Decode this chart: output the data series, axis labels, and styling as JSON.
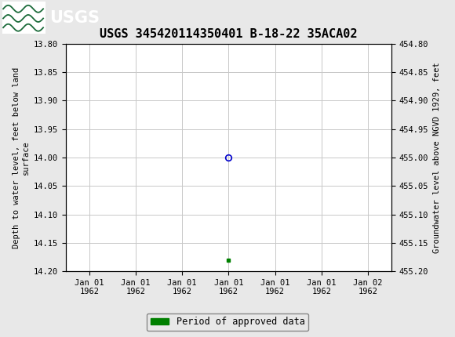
{
  "title": "USGS 345420114350401 B-18-22 35ACA02",
  "title_fontsize": 11,
  "ylabel_left": "Depth to water level, feet below land\nsurface",
  "ylabel_right": "Groundwater level above NGVD 1929, feet",
  "ylim_left": [
    13.8,
    14.2
  ],
  "ylim_right": [
    455.2,
    454.8
  ],
  "y_ticks_left": [
    13.8,
    13.85,
    13.9,
    13.95,
    14.0,
    14.05,
    14.1,
    14.15,
    14.2
  ],
  "y_ticks_right": [
    455.2,
    455.15,
    455.1,
    455.05,
    455.0,
    454.95,
    454.9,
    454.85,
    454.8
  ],
  "data_point_x": 3,
  "data_point_y": 14.0,
  "green_square_x": 3,
  "green_square_y": 14.18,
  "header_bg_color": "#1b6b3a",
  "plot_bg_color": "#ffffff",
  "fig_bg_color": "#e8e8e8",
  "grid_color": "#c8c8c8",
  "circle_color": "#0000cc",
  "green_color": "#008000",
  "font_family": "DejaVu Sans Mono",
  "legend_label": "Period of approved data",
  "x_tick_labels": [
    "Jan 01\n1962",
    "Jan 01\n1962",
    "Jan 01\n1962",
    "Jan 01\n1962",
    "Jan 01\n1962",
    "Jan 01\n1962",
    "Jan 02\n1962"
  ],
  "x_num_ticks": 7,
  "x_lim": [
    -0.5,
    6.5
  ]
}
